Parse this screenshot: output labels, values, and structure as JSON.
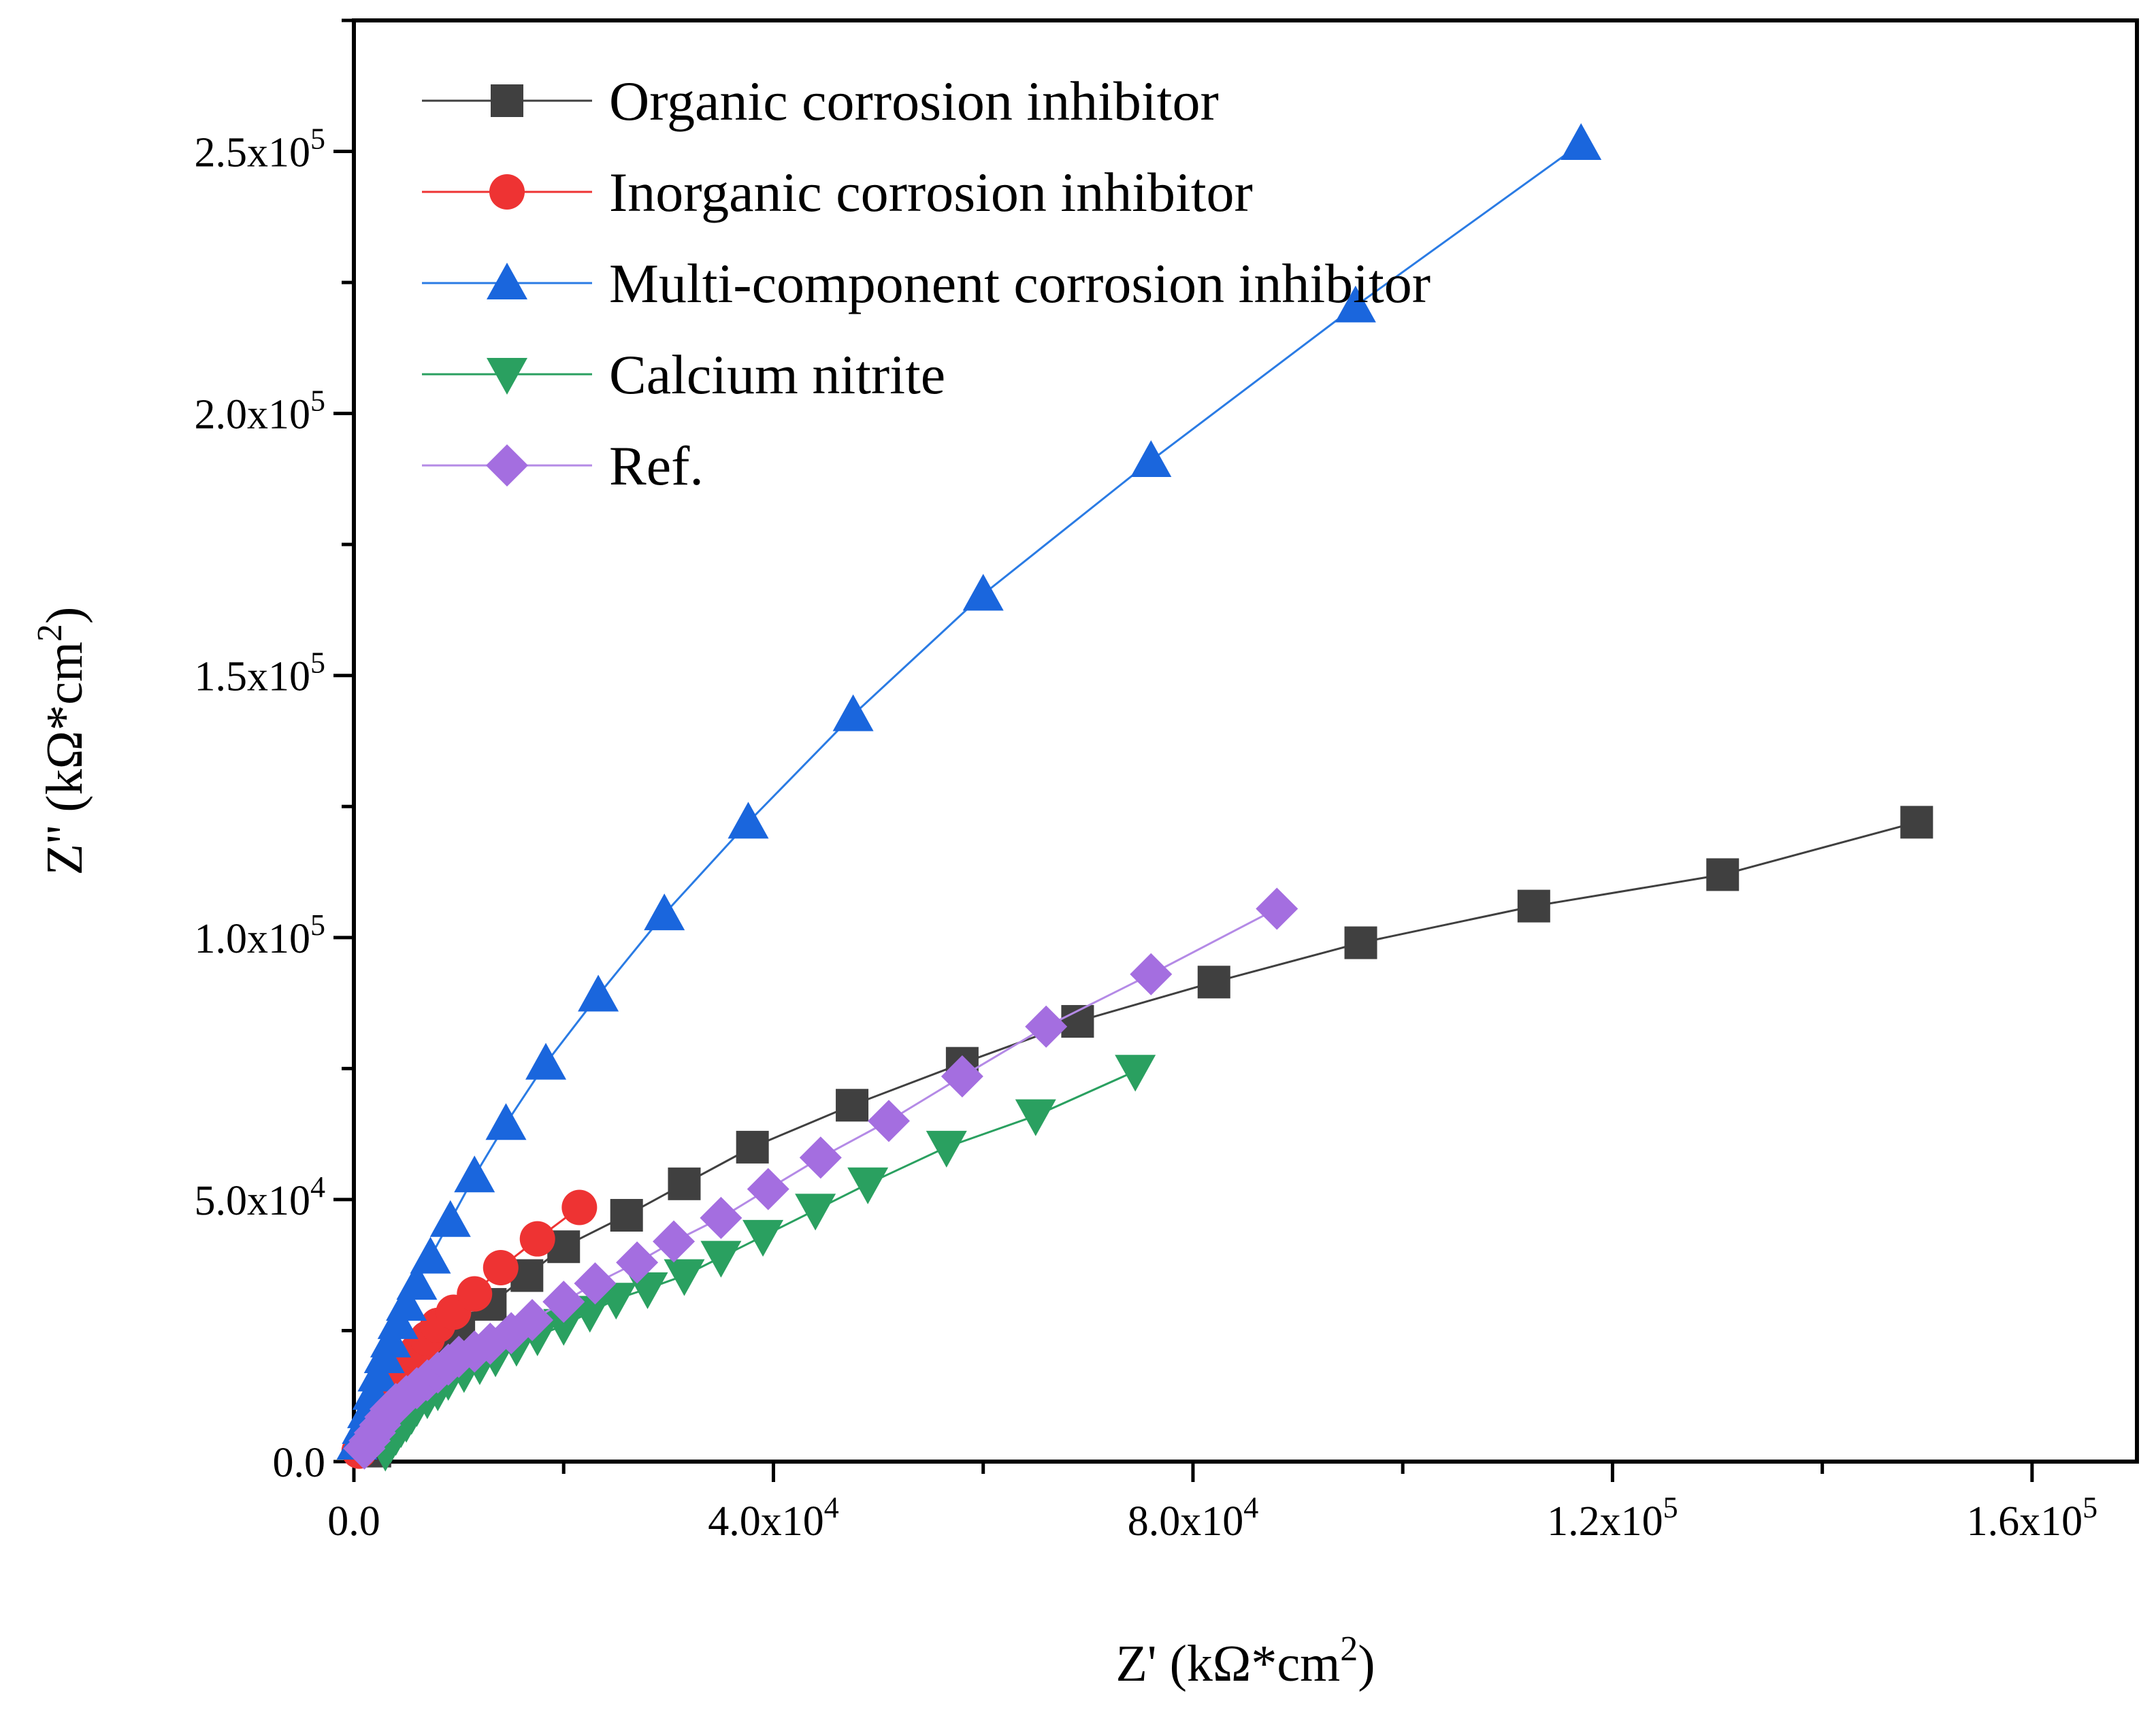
{
  "chart_data": {
    "type": "scatter",
    "title": "",
    "xlabel": "Z' (kΩ*cm²)",
    "ylabel": "Z'' (kΩ*cm²)",
    "xlabel_parts": {
      "main": "Z' (kΩ*cm",
      "sup": "2",
      "close": ")"
    },
    "ylabel_parts": {
      "main": "Z'' (kΩ*cm",
      "sup": "2",
      "close": ")"
    },
    "xlim": [
      0,
      170000
    ],
    "ylim": [
      0,
      275000
    ],
    "grid": false,
    "legend_position": "top-left",
    "x_ticks": [
      {
        "value": 0,
        "mant": "0.0",
        "exp": ""
      },
      {
        "value": 40000,
        "mant": "4.0x10",
        "exp": "4"
      },
      {
        "value": 80000,
        "mant": "8.0x10",
        "exp": "4"
      },
      {
        "value": 120000,
        "mant": "1.2x10",
        "exp": "5"
      },
      {
        "value": 160000,
        "mant": "1.6x10",
        "exp": "5"
      }
    ],
    "y_ticks": [
      {
        "value": 0,
        "mant": "0.0",
        "exp": ""
      },
      {
        "value": 50000,
        "mant": "5.0x10",
        "exp": "4"
      },
      {
        "value": 100000,
        "mant": "1.0x10",
        "exp": "5"
      },
      {
        "value": 150000,
        "mant": "1.5x10",
        "exp": "5"
      },
      {
        "value": 200000,
        "mant": "2.0x10",
        "exp": "5"
      },
      {
        "value": 250000,
        "mant": "2.5x10",
        "exp": "5"
      }
    ],
    "series": [
      {
        "name": "Organic corrosion inhibitor",
        "color": "#404040",
        "line_color": "#404040",
        "marker": "square",
        "x": [
          2000,
          2500,
          3000,
          4000,
          5000,
          6000,
          8000,
          10000,
          13000,
          16500,
          20000,
          26000,
          31500,
          38000,
          47500,
          58000,
          69000,
          82000,
          96000,
          112500,
          130500,
          149000
        ],
        "y": [
          2000,
          4500,
          7000,
          10500,
          14000,
          17000,
          21000,
          25500,
          30000,
          35500,
          41000,
          47000,
          53000,
          60000,
          68000,
          76000,
          84000,
          91500,
          99000,
          106000,
          112000,
          122000
        ]
      },
      {
        "name": "Inorganic corrosion inhibitor",
        "color": "#ee3333",
        "line_color": "#ee3333",
        "marker": "circle",
        "x": [
          500,
          1000,
          1500,
          2000,
          2500,
          3000,
          3500,
          4000,
          5000,
          6000,
          7000,
          8000,
          9500,
          11500,
          14000,
          17500,
          21500
        ],
        "y": [
          2000,
          4000,
          6000,
          8000,
          10000,
          12000,
          14000,
          16000,
          18500,
          21000,
          23500,
          26000,
          28500,
          32000,
          37000,
          42500,
          48500
        ]
      },
      {
        "name": "Multi-component corrosion inhibitor",
        "color": "#1a66dd",
        "line_color": "#2a7be4",
        "marker": "triangle-up",
        "x": [
          300,
          800,
          1300,
          1800,
          2300,
          2900,
          3500,
          4200,
          5000,
          6000,
          7300,
          9200,
          11500,
          14500,
          18300,
          23300,
          29600,
          37600,
          47600,
          60000,
          76000,
          95500,
          117000
        ],
        "y": [
          3500,
          6500,
          9500,
          13000,
          16500,
          20000,
          23000,
          26500,
          30000,
          34000,
          39000,
          46000,
          54500,
          64500,
          76000,
          89000,
          104500,
          122000,
          142500,
          165500,
          191000,
          220500,
          251500
        ]
      },
      {
        "name": "Calcium nitrite",
        "color": "#2aa060",
        "line_color": "#2aa060",
        "marker": "triangle-down",
        "x": [
          3000,
          3500,
          4000,
          4500,
          5000,
          5500,
          6000,
          7000,
          8000,
          9000,
          10500,
          12000,
          13500,
          15500,
          17500,
          20000,
          22500,
          25000,
          28000,
          31500,
          35000,
          39000,
          44000,
          49000,
          56500,
          65000,
          74500
        ],
        "y": [
          2000,
          3500,
          5000,
          6500,
          7500,
          9000,
          10500,
          12000,
          13500,
          15500,
          17000,
          18500,
          20000,
          22000,
          24000,
          26000,
          28500,
          31000,
          33000,
          35500,
          39000,
          43000,
          48000,
          53000,
          60000,
          66000,
          74500
        ]
      },
      {
        "name": "Ref.",
        "color": "#a46ee0",
        "line_color": "#b48ae6",
        "marker": "diamond",
        "x": [
          1000,
          1500,
          2000,
          2500,
          3000,
          3500,
          4000,
          5000,
          6000,
          7000,
          8000,
          9000,
          10000,
          11500,
          13000,
          15000,
          17000,
          20000,
          23000,
          27000,
          30500,
          35000,
          39500,
          44500,
          51000,
          58000,
          66000,
          76000,
          88000
        ],
        "y": [
          2500,
          4000,
          5500,
          7000,
          8500,
          10000,
          11000,
          12500,
          14000,
          15500,
          17000,
          18500,
          20000,
          21000,
          22500,
          24500,
          27000,
          30500,
          34000,
          38000,
          42000,
          46500,
          52000,
          58000,
          65000,
          73500,
          83000,
          93000,
          105500
        ]
      }
    ]
  }
}
